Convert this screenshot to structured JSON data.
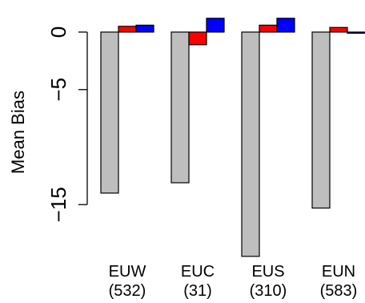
{
  "chart_data": {
    "type": "bar",
    "categories": [
      "EUW",
      "EUC",
      "EUS",
      "EUN"
    ],
    "category_counts": [
      "(532)",
      "(31)",
      "(310)",
      "(583)"
    ],
    "series": [
      {
        "values": [
          -14.0,
          -13.1,
          -19.5,
          -15.3
        ],
        "color": "#bebebe"
      },
      {
        "values": [
          0.5,
          -1.1,
          0.6,
          0.4
        ],
        "color": "#ff0000"
      },
      {
        "values": [
          0.6,
          1.2,
          1.2,
          -0.1
        ],
        "color": "#0000ff"
      }
    ],
    "ylabel": "Mean Bias",
    "yticks": [
      0,
      -5,
      -15
    ],
    "ytick_labels": [
      "0",
      "−5",
      "−15"
    ],
    "ylim": [
      -19.5,
      1.5
    ],
    "grid": false,
    "legend": "none"
  }
}
